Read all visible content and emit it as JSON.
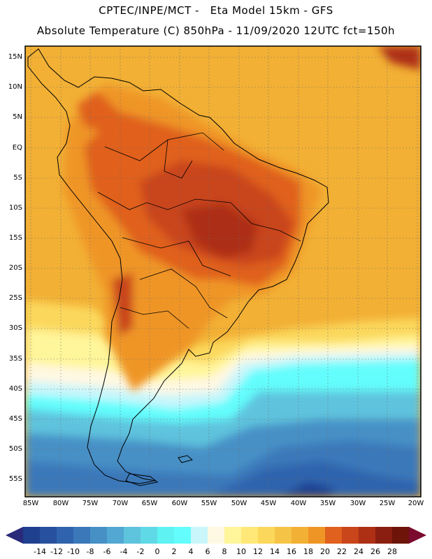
{
  "header": {
    "line1": "CPTEC/INPE/MCT -   Eta Model 15km - GFS",
    "line2": "Absolute Temperature (C) 850hPa - 11/09/2020 12UTC fct=150h"
  },
  "map": {
    "lat_labels": [
      "15N",
      "10N",
      "5N",
      "EQ",
      "5S",
      "10S",
      "15S",
      "20S",
      "25S",
      "30S",
      "35S",
      "40S",
      "45S",
      "50S",
      "55S"
    ],
    "lon_labels": [
      "85W",
      "80W",
      "75W",
      "70W",
      "65W",
      "60W",
      "55W",
      "50W",
      "45W",
      "40W",
      "35W",
      "30W",
      "25W",
      "20W"
    ]
  },
  "colorbar": {
    "labels": [
      "-14",
      "-12",
      "-10",
      "-8",
      "-6",
      "-4",
      "-2",
      "0",
      "2",
      "4",
      "6",
      "8",
      "10",
      "12",
      "14",
      "16",
      "18",
      "20",
      "22",
      "24",
      "26",
      "28"
    ],
    "colors": [
      "#1f3f8f",
      "#27509e",
      "#2f63ad",
      "#3a78ba",
      "#4690c6",
      "#52a8d2",
      "#5ec3dd",
      "#5fd9e6",
      "#5ef2f2",
      "#64fdfd",
      "#c8f6fb",
      "#fff8e2",
      "#fff59a",
      "#ffe878",
      "#fbd85c",
      "#f5c446",
      "#f2b035",
      "#ef9526",
      "#e0601d",
      "#c9451a",
      "#ad2f14",
      "#8a1e10",
      "#6e1408"
    ],
    "left_tip_color": "#2a2a7a",
    "right_tip_color": "#7a0a2e"
  }
}
